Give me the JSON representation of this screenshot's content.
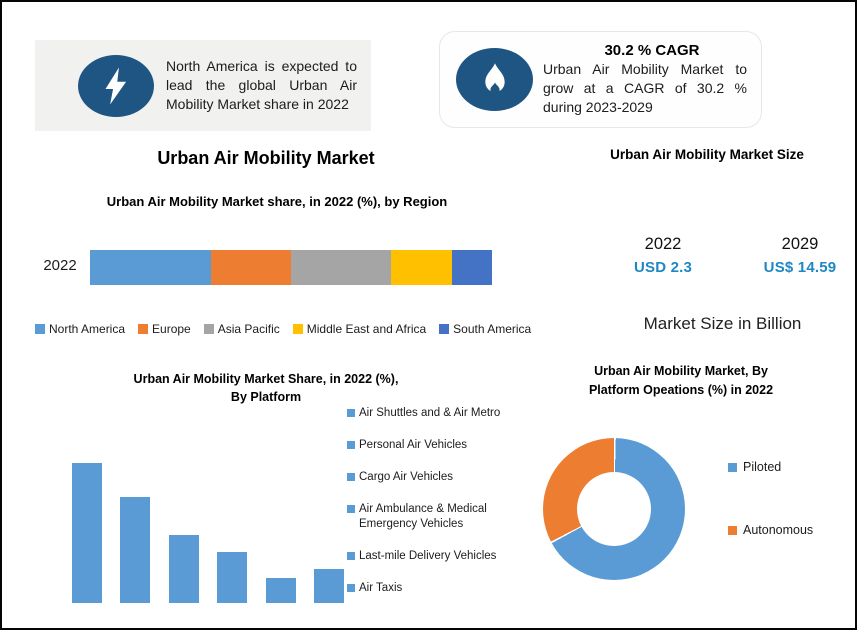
{
  "titles": {
    "main": "Urban Air Mobility Market"
  },
  "highlights": {
    "left": {
      "icon": "lightning-icon",
      "text": "North America is expected to lead the global Urban Air Mobility Market share in 2022"
    },
    "right": {
      "icon": "flame-icon",
      "heading": "30.2 % CAGR",
      "text": "Urban Air Mobility Market to grow at a CAGR of 30.2 % during 2023-2029"
    }
  },
  "market_size": {
    "title": "Urban Air Mobility Market Size",
    "columns": [
      {
        "year": "2022",
        "value": "USD 2.3"
      },
      {
        "year": "2029",
        "value": "US$ 14.59"
      }
    ],
    "caption": "Market Size in Billion"
  },
  "colors": {
    "accent_blue": "#5B9BD5",
    "accent_orange": "#ED7D31",
    "accent_gray": "#A5A5A5",
    "accent_yellow": "#FFC000",
    "accent_dark_blue": "#4472C4",
    "icon_navy": "#1F5582",
    "value_text_blue": "#1F87C4",
    "highlight_box_gray": "#F1F1F0"
  },
  "chart_data": [
    {
      "type": "bar",
      "subtype": "stacked-horizontal",
      "title": "Urban Air Mobility Market share, in 2022 (%), by Region",
      "categories": [
        "2022"
      ],
      "series": [
        {
          "name": "North America",
          "color": "#5B9BD5",
          "values": [
            30
          ]
        },
        {
          "name": "Europe",
          "color": "#ED7D31",
          "values": [
            20
          ]
        },
        {
          "name": "Asia Pacific",
          "color": "#A5A5A5",
          "values": [
            25
          ]
        },
        {
          "name": "Middle East and Africa",
          "color": "#FFC000",
          "values": [
            15
          ]
        },
        {
          "name": "South America",
          "color": "#4472C4",
          "values": [
            10
          ]
        }
      ],
      "xlim": [
        0,
        100
      ],
      "grid": false,
      "legend_position": "bottom"
    },
    {
      "type": "bar",
      "subtype": "vertical",
      "title": "Urban Air Mobility Market Share, in 2022 (%),\nBy Platform",
      "categories": [
        "Air Shuttles and & Air Metro",
        "Personal Air Vehicles",
        "Cargo Air Vehicles",
        "Air Ambulance & Medical Emergency Vehicles",
        "Last-mile Delivery Vehicles",
        "Air Taxis"
      ],
      "values": [
        33,
        25,
        16,
        12,
        6,
        8
      ],
      "bar_color": "#5B9BD5",
      "ylim": [
        0,
        35
      ],
      "grid": false,
      "axis_ticks_hidden": true,
      "legend_position": "right"
    },
    {
      "type": "pie",
      "subtype": "donut",
      "title": "Urban Air Mobility Market, By\nPlatform Opeations (%) in 2022",
      "segments": [
        {
          "name": "Piloted",
          "value": 67,
          "color": "#5B9BD5"
        },
        {
          "name": "Autonomous",
          "value": 33,
          "color": "#ED7D31"
        }
      ],
      "start_angle_deg": 0,
      "legend_position": "right"
    }
  ]
}
